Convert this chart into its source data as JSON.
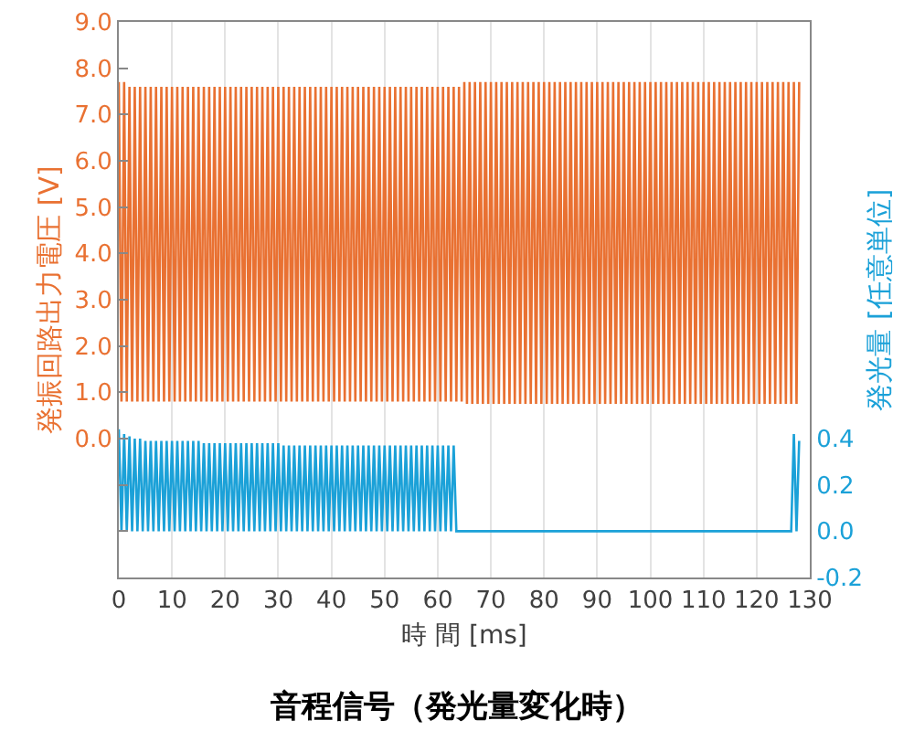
{
  "chart_data": {
    "type": "line",
    "title": "音程信号（発光量変化時）",
    "xlabel": "時 間 [ms]",
    "ylabel": "発振回路出力電圧 [V]",
    "y2label": "発光量 [任意単位]",
    "x": [
      0,
      0.5,
      1,
      1.5,
      2,
      2.5,
      3,
      3.5,
      4,
      4.5,
      5,
      5.5,
      6,
      6.5,
      7,
      7.5,
      8,
      8.5,
      9,
      9.5,
      10,
      10.5,
      11,
      11.5,
      12,
      12.5,
      13,
      13.5,
      14,
      14.5,
      15,
      15.5,
      16,
      16.5,
      17,
      17.5,
      18,
      18.5,
      19,
      19.5,
      20,
      20.5,
      21,
      21.5,
      22,
      22.5,
      23,
      23.5,
      24,
      24.5,
      25,
      25.5,
      26,
      26.5,
      27,
      27.5,
      28,
      28.5,
      29,
      29.5,
      30,
      30.5,
      31,
      31.5,
      32,
      32.5,
      33,
      33.5,
      34,
      34.5,
      35,
      35.5,
      36,
      36.5,
      37,
      37.5,
      38,
      38.5,
      39,
      39.5,
      40,
      40.5,
      41,
      41.5,
      42,
      42.5,
      43,
      43.5,
      44,
      44.5,
      45,
      45.5,
      46,
      46.5,
      47,
      47.5,
      48,
      48.5,
      49,
      49.5,
      50,
      50.5,
      51,
      51.5,
      52,
      52.5,
      53,
      53.5,
      54,
      54.5,
      55,
      55.5,
      56,
      56.5,
      57,
      57.5,
      58,
      58.5,
      59,
      59.5,
      60,
      60.5,
      61,
      61.5,
      62,
      62.5,
      63,
      63.5,
      64,
      64.5,
      65,
      65.5,
      66,
      66.5,
      67,
      67.5,
      68,
      68.5,
      69,
      69.5,
      70,
      70.5,
      71,
      71.5,
      72,
      72.5,
      73,
      73.5,
      74,
      74.5,
      75,
      75.5,
      76,
      76.5,
      77,
      77.5,
      78,
      78.5,
      79,
      79.5,
      80,
      80.5,
      81,
      81.5,
      82,
      82.5,
      83,
      83.5,
      84,
      84.5,
      85,
      85.5,
      86,
      86.5,
      87,
      87.5,
      88,
      88.5,
      89,
      89.5,
      90,
      90.5,
      91,
      91.5,
      92,
      92.5,
      93,
      93.5,
      94,
      94.5,
      95,
      95.5,
      96,
      96.5,
      97,
      97.5,
      98,
      98.5,
      99,
      99.5,
      100,
      100.5,
      101,
      101.5,
      102,
      102.5,
      103,
      103.5,
      104,
      104.5,
      105,
      105.5,
      106,
      106.5,
      107,
      107.5,
      108,
      108.5,
      109,
      109.5,
      110,
      110.5,
      111,
      111.5,
      112,
      112.5,
      113,
      113.5,
      114,
      114.5,
      115,
      115.5,
      116,
      116.5,
      117,
      117.5,
      118,
      118.5,
      119,
      119.5,
      120,
      120.5,
      121,
      121.5,
      122,
      122.5,
      123,
      123.5,
      124,
      124.5,
      125,
      125.5,
      126,
      126.5,
      127,
      127.5,
      128
    ],
    "series": [
      {
        "color": "#e97132",
        "values": [
          7.7,
          0.8,
          7.7,
          0.8,
          7.6,
          0.8,
          7.6,
          0.8,
          7.6,
          0.8,
          7.6,
          0.8,
          7.6,
          0.8,
          7.6,
          0.8,
          7.6,
          0.8,
          7.6,
          0.8,
          7.6,
          0.8,
          7.6,
          0.8,
          7.6,
          0.8,
          7.6,
          0.8,
          7.6,
          0.8,
          7.6,
          0.8,
          7.6,
          0.8,
          7.6,
          0.8,
          7.6,
          0.8,
          7.6,
          0.8,
          7.6,
          0.8,
          7.6,
          0.8,
          7.6,
          0.8,
          7.6,
          0.8,
          7.6,
          0.8,
          7.6,
          0.8,
          7.6,
          0.8,
          7.6,
          0.8,
          7.6,
          0.8,
          7.6,
          0.8,
          7.6,
          0.8,
          7.6,
          0.8,
          7.6,
          0.8,
          7.6,
          0.8,
          7.6,
          0.8,
          7.6,
          0.8,
          7.6,
          0.8,
          7.6,
          0.8,
          7.6,
          0.8,
          7.6,
          0.8,
          7.6,
          0.8,
          7.6,
          0.8,
          7.6,
          0.8,
          7.6,
          0.8,
          7.6,
          0.8,
          7.6,
          0.8,
          7.6,
          0.8,
          7.6,
          0.8,
          7.6,
          0.8,
          7.6,
          0.8,
          7.6,
          0.8,
          7.6,
          0.8,
          7.6,
          0.8,
          7.6,
          0.8,
          7.6,
          0.8,
          7.6,
          0.8,
          7.6,
          0.8,
          7.6,
          0.8,
          7.6,
          0.8,
          7.6,
          0.8,
          7.6,
          0.8,
          7.6,
          0.8,
          7.6,
          0.8,
          7.6,
          0.8,
          7.6,
          0.8,
          7.7,
          0.75,
          7.7,
          0.75,
          7.7,
          0.75,
          7.7,
          0.75,
          7.7,
          0.75,
          7.7,
          0.75,
          7.7,
          0.75,
          7.7,
          0.75,
          7.7,
          0.75,
          7.7,
          0.75,
          7.7,
          0.75,
          7.7,
          0.75,
          7.7,
          0.75,
          7.7,
          0.75,
          7.7,
          0.75,
          7.7,
          0.75,
          7.7,
          0.75,
          7.7,
          0.75,
          7.7,
          0.75,
          7.7,
          0.75,
          7.7,
          0.75,
          7.7,
          0.75,
          7.7,
          0.75,
          7.7,
          0.75,
          7.7,
          0.75,
          7.7,
          0.75,
          7.7,
          0.75,
          7.7,
          0.75,
          7.7,
          0.75,
          7.7,
          0.75,
          7.7,
          0.75,
          7.7,
          0.75,
          7.7,
          0.75,
          7.7,
          0.75,
          7.7,
          0.75,
          7.7,
          0.75,
          7.7,
          0.75,
          7.7,
          0.75,
          7.7,
          0.75,
          7.7,
          0.75,
          7.7,
          0.75,
          7.7,
          0.75,
          7.7,
          0.75,
          7.7,
          0.75,
          7.7,
          0.75,
          7.7,
          0.75,
          7.7,
          0.75,
          7.7,
          0.75,
          7.7,
          0.75,
          7.7,
          0.75,
          7.7,
          0.75,
          7.7,
          0.75,
          7.7,
          0.75,
          7.7,
          0.75,
          7.7,
          0.75,
          7.7,
          0.75,
          7.7,
          0.75,
          7.7,
          0.75,
          7.7,
          0.75,
          7.7,
          0.75,
          7.7,
          0.75,
          7.7,
          0.75,
          7.7,
          0.75,
          7.7
        ]
      },
      {
        "color": "#1ba1d8",
        "axis": "y2",
        "values": [
          0.44,
          0,
          0.42,
          0,
          0.41,
          0,
          0.4,
          0,
          0.4,
          0,
          0.39,
          0,
          0.39,
          0,
          0.39,
          0,
          0.39,
          0,
          0.39,
          0,
          0.39,
          0,
          0.39,
          0,
          0.39,
          0,
          0.39,
          0,
          0.39,
          0,
          0.39,
          0,
          0.38,
          0,
          0.38,
          0,
          0.38,
          0,
          0.38,
          0,
          0.38,
          0,
          0.38,
          0,
          0.38,
          0,
          0.38,
          0,
          0.38,
          0,
          0.38,
          0,
          0.38,
          0,
          0.38,
          0,
          0.38,
          0,
          0.38,
          0,
          0.38,
          0,
          0.37,
          0,
          0.37,
          0,
          0.37,
          0,
          0.37,
          0,
          0.37,
          0,
          0.37,
          0,
          0.37,
          0,
          0.37,
          0,
          0.37,
          0,
          0.37,
          0,
          0.37,
          0,
          0.37,
          0,
          0.37,
          0,
          0.37,
          0,
          0.37,
          0,
          0.37,
          0,
          0.37,
          0,
          0.37,
          0,
          0.37,
          0,
          0.37,
          0,
          0.37,
          0,
          0.37,
          0,
          0.37,
          0,
          0.37,
          0,
          0.37,
          0,
          0.37,
          0,
          0.37,
          0,
          0.37,
          0,
          0.37,
          0,
          0.37,
          0,
          0.37,
          0,
          0.37,
          0,
          0.37,
          0,
          0,
          0,
          0,
          0,
          0,
          0,
          0,
          0,
          0,
          0,
          0,
          0,
          0,
          0,
          0,
          0,
          0,
          0,
          0,
          0,
          0,
          0,
          0,
          0,
          0,
          0,
          0,
          0,
          0,
          0,
          0,
          0,
          0,
          0,
          0,
          0,
          0,
          0,
          0,
          0,
          0,
          0,
          0,
          0,
          0,
          0,
          0,
          0,
          0,
          0,
          0,
          0,
          0,
          0,
          0,
          0,
          0,
          0,
          0,
          0,
          0,
          0,
          0,
          0,
          0,
          0,
          0,
          0,
          0,
          0,
          0,
          0,
          0,
          0,
          0,
          0,
          0,
          0,
          0,
          0,
          0,
          0,
          0,
          0,
          0,
          0,
          0,
          0,
          0,
          0,
          0,
          0,
          0,
          0,
          0,
          0,
          0,
          0,
          0,
          0,
          0,
          0,
          0,
          0,
          0,
          0,
          0,
          0,
          0,
          0,
          0,
          0,
          0,
          0,
          0,
          0,
          0,
          0,
          0,
          0,
          0,
          0,
          0,
          0,
          0,
          0,
          0.42,
          0,
          0.39
        ]
      }
    ],
    "xlim": [
      0,
      130
    ],
    "xticks": [
      0,
      10,
      20,
      30,
      40,
      50,
      60,
      70,
      80,
      90,
      100,
      110,
      120,
      130
    ],
    "ylim": [
      -3,
      9
    ],
    "yticks": [
      {
        "value": -2,
        "label": null
      },
      {
        "value": -1,
        "label": null
      },
      {
        "value": 0,
        "label": "0.0"
      },
      {
        "value": 1,
        "label": "1.0"
      },
      {
        "value": 2,
        "label": "2.0"
      },
      {
        "value": 3,
        "label": "3.0"
      },
      {
        "value": 4,
        "label": "4.0"
      },
      {
        "value": 5,
        "label": "5.0"
      },
      {
        "value": 6,
        "label": "6.0"
      },
      {
        "value": 7,
        "label": "7.0"
      },
      {
        "value": 8,
        "label": "8.0"
      },
      {
        "value": 9,
        "label": "9.0"
      }
    ],
    "y2lim": [
      -0.2,
      2.2
    ],
    "y2ticks": [
      {
        "value": -0.2,
        "label": "-0.2"
      },
      {
        "value": 0,
        "label": "0.0"
      },
      {
        "value": 0.2,
        "label": "0.2"
      },
      {
        "value": 0.4,
        "label": "0.4"
      }
    ],
    "grid": "x",
    "marker": "none",
    "line_style": "solid"
  }
}
